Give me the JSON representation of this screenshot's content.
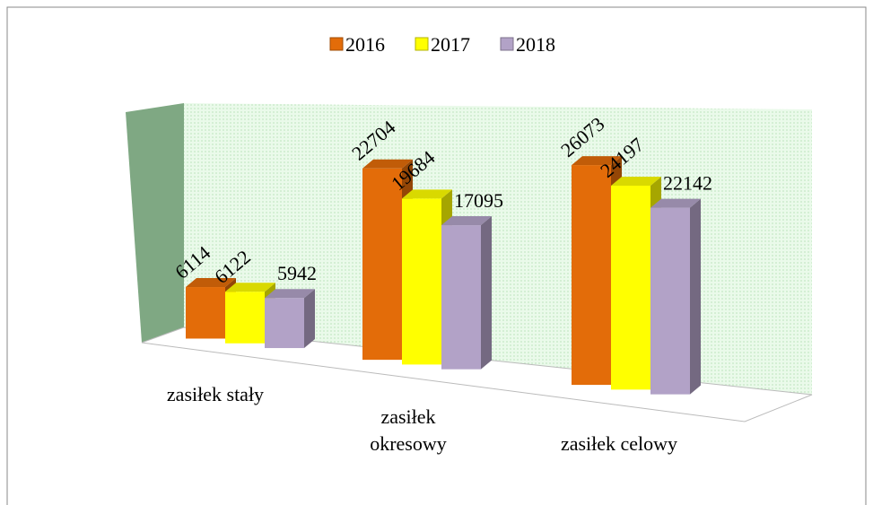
{
  "chart_data": {
    "type": "bar3d",
    "categories": [
      "zasiłek stały",
      "zasiłek okresowy",
      "zasiłek celowy"
    ],
    "series": [
      {
        "name": "2016",
        "color": "#e36c09",
        "values": [
          6114,
          22704,
          26073
        ]
      },
      {
        "name": "2017",
        "color": "#ffff00",
        "values": [
          6122,
          19684,
          24197
        ]
      },
      {
        "name": "2018",
        "color": "#b2a2c7",
        "values": [
          5942,
          17095,
          22142
        ]
      }
    ],
    "legend": "top"
  }
}
